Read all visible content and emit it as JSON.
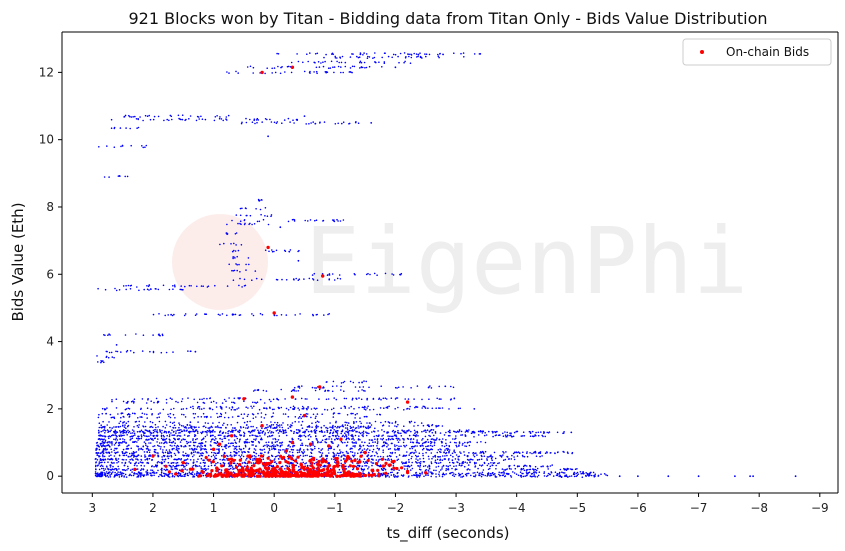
{
  "chart_data": {
    "type": "scatter",
    "title": "921 Blocks won by Titan - Bidding data from Titan Only - Bids Value Distribution",
    "xlabel": "ts_diff (seconds)",
    "ylabel": "Bids Value (Eth)",
    "x_reversed": true,
    "xlim": [
      3.5,
      -9.3
    ],
    "ylim": [
      -0.5,
      13.2
    ],
    "xticks": [
      3,
      2,
      1,
      0,
      -1,
      -2,
      -3,
      -4,
      -5,
      -6,
      -7,
      -8,
      -9
    ],
    "xtick_labels": [
      "3",
      "2",
      "1",
      "0",
      "−1",
      "−2",
      "−3",
      "−4",
      "−5",
      "−6",
      "−7",
      "−8",
      "−9"
    ],
    "yticks": [
      0,
      2,
      4,
      6,
      8,
      10,
      12
    ],
    "ytick_labels": [
      "0",
      "2",
      "4",
      "6",
      "8",
      "10",
      "12"
    ],
    "grid": false,
    "legend": {
      "placement": "top-right",
      "entries": [
        {
          "label": "On-chain Bids",
          "color": "#ff0000"
        }
      ]
    },
    "watermark": "EigenPhi",
    "series": [
      {
        "name": "",
        "color": "#0000ff",
        "marker_size": "small",
        "bands": [
          {
            "y": 12.55,
            "x_start": 0.0,
            "x_end": -3.4
          },
          {
            "y": 12.45,
            "x_start": -0.8,
            "x_end": -3.2
          },
          {
            "y": 12.3,
            "x_start": -0.2,
            "x_end": -2.3
          },
          {
            "y": 12.15,
            "x_start": 0.5,
            "x_end": -2.0
          },
          {
            "y": 12.0,
            "x_start": 0.85,
            "x_end": -1.3
          },
          {
            "y": 10.7,
            "x_start": 2.5,
            "x_end": 0.6
          },
          {
            "y": 10.6,
            "x_start": 2.7,
            "x_end": -0.5
          },
          {
            "y": 10.5,
            "x_start": 0.7,
            "x_end": -1.6
          },
          {
            "y": 10.35,
            "x_start": 2.8,
            "x_end": 2.2
          },
          {
            "y": 9.8,
            "x_start": 2.9,
            "x_end": 2.1
          },
          {
            "y": 8.9,
            "x_start": 2.9,
            "x_end": 2.4
          },
          {
            "y": 8.2,
            "x_start": 0.3,
            "x_end": 0.2
          },
          {
            "y": 7.95,
            "x_start": 0.6,
            "x_end": 0.1
          },
          {
            "y": 7.75,
            "x_start": 0.7,
            "x_end": 0.0
          },
          {
            "y": 7.6,
            "x_start": 0.7,
            "x_end": -1.2
          },
          {
            "y": 7.5,
            "x_start": 0.8,
            "x_end": 0.0
          },
          {
            "y": 7.2,
            "x_start": 0.8,
            "x_end": 0.5
          },
          {
            "y": 6.9,
            "x_start": 0.9,
            "x_end": 0.5
          },
          {
            "y": 6.7,
            "x_start": 0.7,
            "x_end": -0.6
          },
          {
            "y": 6.5,
            "x_start": 0.7,
            "x_end": 0.4
          },
          {
            "y": 6.3,
            "x_start": 0.8,
            "x_end": 0.4
          },
          {
            "y": 6.1,
            "x_start": 0.8,
            "x_end": 0.3
          },
          {
            "y": 6.0,
            "x_start": -0.6,
            "x_end": -2.2
          },
          {
            "y": 5.85,
            "x_start": 0.7,
            "x_end": -1.1
          },
          {
            "y": 5.65,
            "x_start": 2.5,
            "x_end": 0.4
          },
          {
            "y": 5.55,
            "x_start": 2.95,
            "x_end": 1.4
          },
          {
            "y": 4.8,
            "x_start": 2.0,
            "x_end": -1.0
          },
          {
            "y": 4.2,
            "x_start": 2.9,
            "x_end": 1.8
          },
          {
            "y": 3.7,
            "x_start": 2.8,
            "x_end": 1.3
          },
          {
            "y": 3.55,
            "x_start": 2.95,
            "x_end": 2.6
          },
          {
            "y": 3.4,
            "x_start": 2.95,
            "x_end": 2.8
          },
          {
            "y": 2.8,
            "x_start": -0.7,
            "x_end": -1.6
          },
          {
            "y": 2.65,
            "x_start": -0.3,
            "x_end": -3.0
          },
          {
            "y": 2.55,
            "x_start": 0.5,
            "x_end": -1.5
          },
          {
            "y": 2.3,
            "x_start": 2.7,
            "x_end": -3.0
          },
          {
            "y": 2.2,
            "x_start": 2.8,
            "x_end": 0.0
          },
          {
            "y": 2.05,
            "x_start": 1.5,
            "x_end": -2.6
          },
          {
            "y": 2.0,
            "x_start": 2.9,
            "x_end": -3.2
          },
          {
            "y": 1.85,
            "x_start": 2.9,
            "x_end": -1.8
          },
          {
            "y": 1.75,
            "x_start": 2.9,
            "x_end": -1.6
          },
          {
            "y": 1.6,
            "x_start": 2.9,
            "x_end": -2.5
          },
          {
            "y": 1.5,
            "x_start": 2.9,
            "x_end": -2.8
          },
          {
            "y": 1.45,
            "x_start": 2.9,
            "x_end": -1.7
          },
          {
            "y": 1.35,
            "x_start": 2.9,
            "x_end": -3.6
          },
          {
            "y": 1.3,
            "x_start": 2.9,
            "x_end": -4.8
          },
          {
            "y": 1.2,
            "x_start": 2.9,
            "x_end": -4.5
          },
          {
            "y": 1.1,
            "x_start": 2.9,
            "x_end": -3.0
          },
          {
            "y": 1.0,
            "x_start": 2.95,
            "x_end": -3.5
          },
          {
            "y": 0.9,
            "x_start": 2.95,
            "x_end": -3.3
          },
          {
            "y": 0.8,
            "x_start": 2.95,
            "x_end": -3.0
          },
          {
            "y": 0.7,
            "x_start": 2.95,
            "x_end": -5.0
          },
          {
            "y": 0.6,
            "x_start": 2.95,
            "x_end": -4.5
          },
          {
            "y": 0.5,
            "x_start": 2.95,
            "x_end": -4.0
          },
          {
            "y": 0.4,
            "x_start": 2.95,
            "x_end": -3.8
          },
          {
            "y": 0.3,
            "x_start": 2.95,
            "x_end": -4.6
          },
          {
            "y": 0.2,
            "x_start": 2.95,
            "x_end": -5.0
          },
          {
            "y": 0.1,
            "x_start": 2.95,
            "x_end": -5.3
          },
          {
            "y": 0.05,
            "x_start": 2.95,
            "x_end": -5.5
          },
          {
            "y": 0.0,
            "x_start": 2.95,
            "x_end": -5.5
          }
        ],
        "sparse_points": [
          {
            "x": -5.7,
            "y": 0.0
          },
          {
            "x": -6.0,
            "y": 0.0
          },
          {
            "x": -6.5,
            "y": 0.0
          },
          {
            "x": -7.0,
            "y": 0.0
          },
          {
            "x": -7.6,
            "y": 0.0
          },
          {
            "x": -7.85,
            "y": 0.0
          },
          {
            "x": -7.9,
            "y": 0.0
          },
          {
            "x": -8.6,
            "y": 0.0
          },
          {
            "x": -5.2,
            "y": 0.05
          },
          {
            "x": -4.9,
            "y": 1.3
          },
          {
            "x": -3.3,
            "y": 2.0
          },
          {
            "x": -3.4,
            "y": 12.55
          },
          {
            "x": -1.6,
            "y": 10.5
          },
          {
            "x": -0.5,
            "y": 10.7
          },
          {
            "x": 0.1,
            "y": 10.1
          },
          {
            "x": -2.0,
            "y": 12.15
          },
          {
            "x": 1.7,
            "y": 4.8
          },
          {
            "x": 1.3,
            "y": 3.7
          },
          {
            "x": 2.6,
            "y": 3.9
          },
          {
            "x": -0.4,
            "y": 6.4
          },
          {
            "x": -0.1,
            "y": 7.4
          }
        ]
      },
      {
        "name": "On-chain Bids",
        "color": "#ff0000",
        "marker_size": "medium",
        "cluster": {
          "x_start": 2.2,
          "x_end": -2.2,
          "y_min": 0.0,
          "y_max": 0.6
        },
        "points": [
          {
            "x": 0.2,
            "y": 12.0
          },
          {
            "x": -0.3,
            "y": 12.15
          },
          {
            "x": 0.1,
            "y": 6.8
          },
          {
            "x": -0.8,
            "y": 5.95
          },
          {
            "x": 0.0,
            "y": 4.85
          },
          {
            "x": -0.75,
            "y": 2.65
          },
          {
            "x": -0.3,
            "y": 2.35
          },
          {
            "x": 0.5,
            "y": 2.3
          },
          {
            "x": -0.5,
            "y": 1.8
          },
          {
            "x": -2.2,
            "y": 2.2
          },
          {
            "x": 0.2,
            "y": 1.5
          },
          {
            "x": 0.7,
            "y": 1.2
          },
          {
            "x": -0.3,
            "y": 1.0
          },
          {
            "x": -0.9,
            "y": 0.9
          },
          {
            "x": 1.0,
            "y": 0.8
          },
          {
            "x": -1.5,
            "y": 0.7
          },
          {
            "x": -0.2,
            "y": 0.75
          },
          {
            "x": 0.4,
            "y": 0.6
          },
          {
            "x": -1.2,
            "y": 0.5
          },
          {
            "x": 1.5,
            "y": 0.4
          },
          {
            "x": 2.0,
            "y": 0.6
          },
          {
            "x": 2.3,
            "y": 0.2
          },
          {
            "x": -1.8,
            "y": 0.3
          },
          {
            "x": -2.5,
            "y": 0.1
          },
          {
            "x": -0.6,
            "y": 0.95
          },
          {
            "x": 0.9,
            "y": 0.95
          },
          {
            "x": -1.1,
            "y": 1.1
          }
        ]
      }
    ]
  }
}
